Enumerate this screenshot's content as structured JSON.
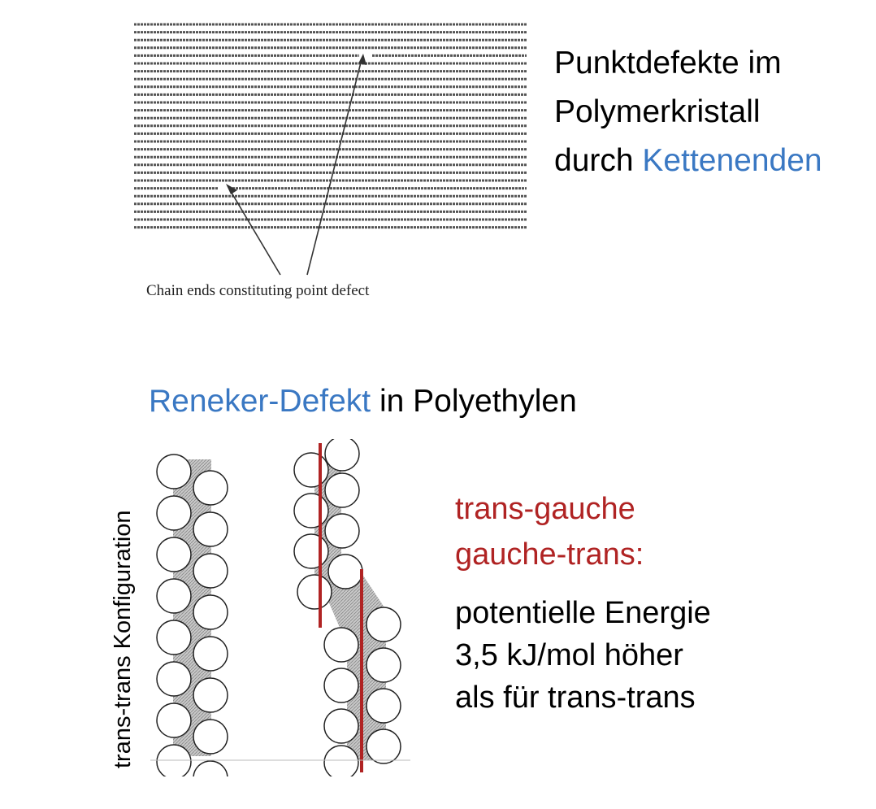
{
  "top_section": {
    "caption": "Chain ends constituting point defect",
    "title_line1": "Punktdefekte im",
    "title_line2": "Polymerkristall",
    "title_line3_prefix": "durch ",
    "title_line3_highlight": "Kettenenden"
  },
  "bottom_section": {
    "heading_highlight": "Reneker-Defekt",
    "heading_rest": " in Polyethylen",
    "rotated_label": "trans-trans Konfiguration",
    "red_line1": "trans-gauche",
    "red_line2": "gauche-trans:",
    "text_line1": "potentielle Energie",
    "text_line2": "3,5 kJ/mol höher",
    "text_line3": "als für trans-trans"
  },
  "colors": {
    "highlight_blue": "#3a78c3",
    "defect_red": "#b02323",
    "hatch_gray": "#999999"
  }
}
